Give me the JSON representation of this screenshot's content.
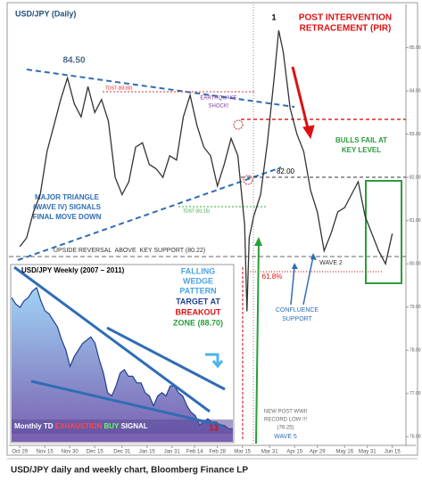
{
  "chart_data": [
    {
      "type": "line",
      "title": "USD/JPY (Daily)",
      "color": "#333333",
      "x": [
        0,
        3,
        6,
        9,
        12,
        15,
        18,
        21,
        24,
        27,
        30,
        33,
        36,
        39,
        42,
        45,
        48,
        51,
        54,
        57,
        60,
        63,
        66,
        69,
        72,
        75,
        78,
        81,
        84,
        87,
        90,
        93,
        96,
        99,
        100,
        101,
        103,
        106,
        109,
        112,
        114,
        116,
        119,
        122,
        125,
        128,
        131,
        134,
        137,
        140,
        143,
        146,
        149,
        152,
        155,
        158,
        161,
        164
      ],
      "values": [
        80.4,
        80.6,
        81.2,
        81.6,
        82.6,
        83.2,
        83.8,
        84.3,
        83.7,
        83.4,
        84.1,
        83.5,
        83.8,
        83.3,
        82.0,
        81.6,
        81.9,
        82.7,
        82.8,
        82.3,
        82.2,
        82.0,
        82.5,
        82.4,
        83.4,
        83.9,
        83.2,
        82.7,
        82.5,
        81.8,
        82.3,
        82.9,
        82.5,
        80.9,
        78.9,
        80.6,
        81.1,
        81.6,
        82.8,
        84.3,
        85.4,
        84.9,
        83.6,
        83.0,
        82.6,
        81.7,
        81.2,
        80.3,
        80.7,
        81.2,
        81.3,
        81.6,
        81.9,
        81.1,
        80.7,
        80.3,
        80.0,
        80.7
      ],
      "xlim": [
        -4,
        170
      ],
      "xticks": [
        {
          "value": 0,
          "label": "Oct 29"
        },
        {
          "value": 11,
          "label": "Nov 15"
        },
        {
          "value": 22,
          "label": "Nov 30"
        },
        {
          "value": 33,
          "label": "Dec 15"
        },
        {
          "value": 45,
          "label": "Dec 31"
        },
        {
          "value": 56,
          "label": "Jan 15"
        },
        {
          "value": 67,
          "label": "Jan 31"
        },
        {
          "value": 77,
          "label": "Feb 14"
        },
        {
          "value": 87,
          "label": "Feb 28"
        },
        {
          "value": 98,
          "label": "Mar 15"
        },
        {
          "value": 110,
          "label": "Mar 31"
        },
        {
          "value": 121,
          "label": "Apr 15"
        },
        {
          "value": 131,
          "label": "Apr 29"
        },
        {
          "value": 143,
          "label": "May 16"
        },
        {
          "value": 153,
          "label": "May 31"
        },
        {
          "value": 164,
          "label": "Jun 15"
        }
      ],
      "ylim": [
        75.8,
        86.0
      ],
      "yticks": [
        {
          "value": 76,
          "label": "76.00"
        },
        {
          "value": 77,
          "label": "77.00"
        },
        {
          "value": 78,
          "label": "78.00"
        },
        {
          "value": 79,
          "label": "79.00"
        },
        {
          "value": 80,
          "label": "80.00"
        },
        {
          "value": 81,
          "label": "81.00"
        },
        {
          "value": 82,
          "label": "82.00"
        },
        {
          "value": 83,
          "label": "83.00"
        },
        {
          "value": 84,
          "label": "84.00"
        },
        {
          "value": 85,
          "label": "85.00"
        }
      ],
      "annotations": [
        "1",
        "POST INTERVENTION",
        "RETRACEMENT (PIR)",
        "84.50",
        "TDST (83.80)",
        "EARTHQUAKE",
        "SHOCK!",
        "BULLS FAIL AT",
        "KEY LEVEL",
        "82.00",
        "MAJOR TRIANGLE",
        "(WAVE IV) SIGNALS",
        "FINAL MOVE DOWN",
        "TDST (81.15)",
        "UPSIDE REVERSAL  ABOVE  KEY SUPPORT (80.22)",
        "61.8%",
        "WAVE 2",
        "CONFLUENCE",
        "SUPPORT",
        "NEW POST WWII",
        "RECORD LOW !!!",
        "(76.25)",
        "WAVE 5"
      ]
    },
    {
      "type": "area",
      "title": "USD/JPY Weekly (2007 – 2011)",
      "color": "#1f3f8f",
      "values": [
        120,
        118,
        117,
        119,
        120,
        122,
        123,
        119,
        116,
        115,
        113,
        111,
        107,
        104,
        99,
        102,
        104,
        106,
        107,
        108,
        106,
        101,
        97,
        91,
        90,
        93,
        97,
        98,
        96,
        96,
        94,
        94,
        91,
        90,
        87,
        90,
        91,
        90,
        93,
        93,
        91,
        90,
        87,
        85,
        84,
        81,
        82,
        83,
        82,
        82,
        81,
        81,
        80,
        80
      ],
      "ylim": [
        76,
        126
      ],
      "annotations": [
        "FALLING",
        "WEDGE",
        "PATTERN",
        "TARGET AT",
        "BREAKOUT",
        "ZONE (88.70)",
        "Monthly TD",
        "EXHAUSTION",
        "BUY",
        "SIGNAL",
        "13"
      ]
    }
  ],
  "caption": "USD/JPY daily and weekly chart, Bloomberg Finance LP"
}
